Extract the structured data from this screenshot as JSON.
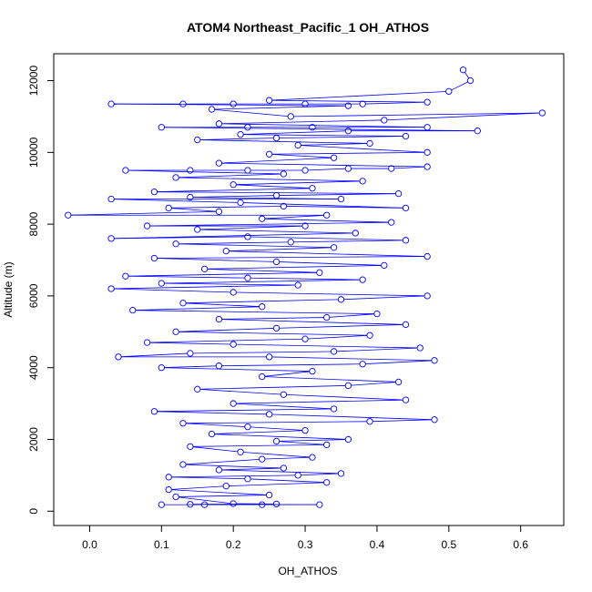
{
  "chart_data": {
    "type": "line",
    "title": "ATOM4 Northeast_Pacific_1 OH_ATHOS",
    "xlabel": "OH_ATHOS",
    "ylabel": "Altitude (m)",
    "xlim": [
      -0.05,
      0.66
    ],
    "ylim": [
      -400,
      12750
    ],
    "x_ticks": [
      0.0,
      0.1,
      0.2,
      0.3,
      0.4,
      0.5,
      0.6
    ],
    "x_tick_labels": [
      "0.0",
      "0.1",
      "0.2",
      "0.3",
      "0.4",
      "0.5",
      "0.6"
    ],
    "y_ticks": [
      0,
      2000,
      4000,
      6000,
      8000,
      10000,
      12000
    ],
    "y_tick_labels": [
      "0",
      "2000",
      "4000",
      "6000",
      "8000",
      "10000",
      "12000"
    ],
    "grid": false,
    "series": [
      {
        "color": "#0000ff",
        "marker": "open-circle",
        "points": [
          [
            0.1,
            180
          ],
          [
            0.16,
            180
          ],
          [
            0.24,
            180
          ],
          [
            0.32,
            180
          ],
          [
            0.14,
            190
          ],
          [
            0.26,
            200
          ],
          [
            0.2,
            210
          ],
          [
            0.12,
            400
          ],
          [
            0.25,
            450
          ],
          [
            0.11,
            600
          ],
          [
            0.19,
            700
          ],
          [
            0.33,
            800
          ],
          [
            0.22,
            900
          ],
          [
            0.11,
            950
          ],
          [
            0.29,
            1000
          ],
          [
            0.35,
            1050
          ],
          [
            0.18,
            1150
          ],
          [
            0.27,
            1200
          ],
          [
            0.13,
            1300
          ],
          [
            0.24,
            1450
          ],
          [
            0.31,
            1500
          ],
          [
            0.21,
            1650
          ],
          [
            0.14,
            1800
          ],
          [
            0.33,
            1850
          ],
          [
            0.26,
            1950
          ],
          [
            0.36,
            2000
          ],
          [
            0.17,
            2150
          ],
          [
            0.3,
            2250
          ],
          [
            0.22,
            2350
          ],
          [
            0.13,
            2450
          ],
          [
            0.39,
            2500
          ],
          [
            0.48,
            2550
          ],
          [
            0.25,
            2700
          ],
          [
            0.09,
            2780
          ],
          [
            0.34,
            2850
          ],
          [
            0.2,
            3000
          ],
          [
            0.44,
            3100
          ],
          [
            0.27,
            3250
          ],
          [
            0.15,
            3400
          ],
          [
            0.36,
            3500
          ],
          [
            0.43,
            3600
          ],
          [
            0.24,
            3750
          ],
          [
            0.31,
            3900
          ],
          [
            0.1,
            4000
          ],
          [
            0.18,
            4050
          ],
          [
            0.38,
            4100
          ],
          [
            0.48,
            4200
          ],
          [
            0.25,
            4300
          ],
          [
            0.04,
            4300
          ],
          [
            0.14,
            4400
          ],
          [
            0.34,
            4450
          ],
          [
            0.46,
            4550
          ],
          [
            0.2,
            4650
          ],
          [
            0.08,
            4700
          ],
          [
            0.3,
            4800
          ],
          [
            0.39,
            4900
          ],
          [
            0.12,
            5000
          ],
          [
            0.26,
            5100
          ],
          [
            0.44,
            5200
          ],
          [
            0.18,
            5350
          ],
          [
            0.33,
            5400
          ],
          [
            0.4,
            5500
          ],
          [
            0.06,
            5600
          ],
          [
            0.24,
            5700
          ],
          [
            0.13,
            5800
          ],
          [
            0.35,
            5900
          ],
          [
            0.47,
            6000
          ],
          [
            0.2,
            6100
          ],
          [
            0.03,
            6200
          ],
          [
            0.29,
            6300
          ],
          [
            0.1,
            6350
          ],
          [
            0.38,
            6450
          ],
          [
            0.22,
            6500
          ],
          [
            0.05,
            6550
          ],
          [
            0.32,
            6650
          ],
          [
            0.16,
            6750
          ],
          [
            0.41,
            6850
          ],
          [
            0.26,
            6950
          ],
          [
            0.09,
            7050
          ],
          [
            0.47,
            7100
          ],
          [
            0.19,
            7250
          ],
          [
            0.34,
            7350
          ],
          [
            0.12,
            7450
          ],
          [
            0.28,
            7500
          ],
          [
            0.44,
            7550
          ],
          [
            0.22,
            7650
          ],
          [
            0.03,
            7600
          ],
          [
            0.37,
            7750
          ],
          [
            0.15,
            7850
          ],
          [
            0.3,
            7950
          ],
          [
            0.08,
            7950
          ],
          [
            0.42,
            8050
          ],
          [
            0.24,
            8150
          ],
          [
            0.33,
            8250
          ],
          [
            -0.03,
            8250
          ],
          [
            0.18,
            8350
          ],
          [
            0.11,
            8450
          ],
          [
            0.27,
            8500
          ],
          [
            0.44,
            8450
          ],
          [
            0.21,
            8600
          ],
          [
            0.03,
            8700
          ],
          [
            0.35,
            8700
          ],
          [
            0.14,
            8750
          ],
          [
            0.26,
            8800
          ],
          [
            0.43,
            8850
          ],
          [
            0.09,
            8900
          ],
          [
            0.31,
            9000
          ],
          [
            0.2,
            9100
          ],
          [
            0.38,
            9200
          ],
          [
            0.12,
            9300
          ],
          [
            0.27,
            9400
          ],
          [
            0.05,
            9500
          ],
          [
            0.14,
            9500
          ],
          [
            0.22,
            9500
          ],
          [
            0.3,
            9500
          ],
          [
            0.36,
            9550
          ],
          [
            0.42,
            9550
          ],
          [
            0.47,
            9600
          ],
          [
            0.18,
            9700
          ],
          [
            0.34,
            9850
          ],
          [
            0.25,
            9950
          ],
          [
            0.47,
            10000
          ],
          [
            0.29,
            10200
          ],
          [
            0.39,
            10250
          ],
          [
            0.15,
            10350
          ],
          [
            0.26,
            10400
          ],
          [
            0.44,
            10450
          ],
          [
            0.21,
            10500
          ],
          [
            0.36,
            10600
          ],
          [
            0.54,
            10600
          ],
          [
            0.1,
            10700
          ],
          [
            0.22,
            10700
          ],
          [
            0.31,
            10700
          ],
          [
            0.47,
            10700
          ],
          [
            0.18,
            10800
          ],
          [
            0.41,
            10900
          ],
          [
            0.63,
            11100
          ],
          [
            0.28,
            11000
          ],
          [
            0.17,
            11200
          ],
          [
            0.36,
            11300
          ],
          [
            0.03,
            11350
          ],
          [
            0.13,
            11350
          ],
          [
            0.2,
            11350
          ],
          [
            0.3,
            11350
          ],
          [
            0.38,
            11350
          ],
          [
            0.47,
            11400
          ],
          [
            0.25,
            11450
          ],
          [
            0.5,
            11700
          ],
          [
            0.53,
            12000
          ],
          [
            0.52,
            12300
          ]
        ]
      }
    ]
  }
}
